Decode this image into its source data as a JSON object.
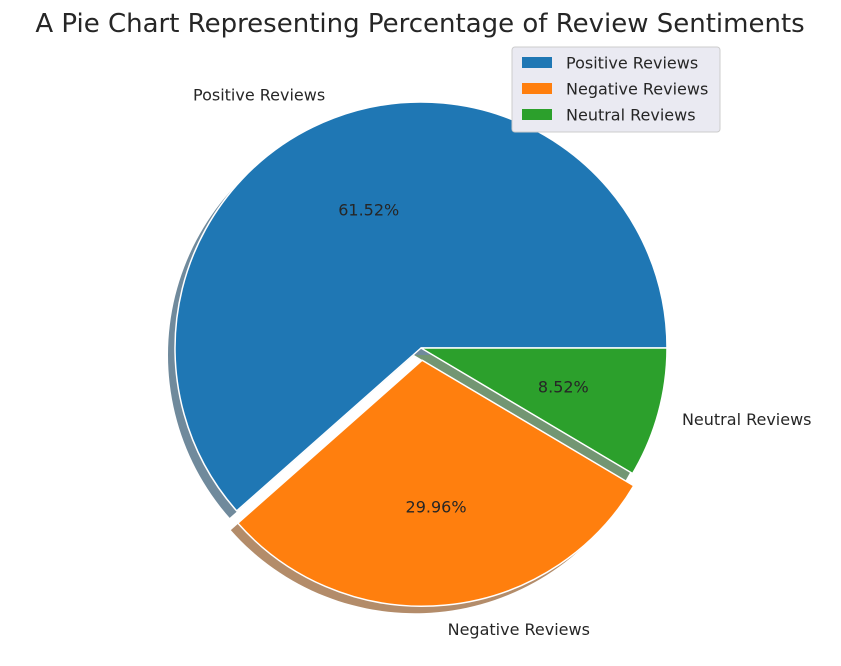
{
  "chart_data": {
    "type": "pie",
    "title": "A Pie Chart Representing Percentage of Review Sentiments",
    "slices": [
      {
        "label": "Positive Reviews",
        "value": 61.52,
        "pct_label": "61.52%",
        "color": "#1f77b4",
        "explode": 0
      },
      {
        "label": "Negative Reviews",
        "value": 29.96,
        "pct_label": "29.96%",
        "color": "#ff7f0e",
        "explode": 0.05
      },
      {
        "label": "Neutral Reviews",
        "value": 8.52,
        "pct_label": "8.52%",
        "color": "#2ca02c",
        "explode": 0
      }
    ],
    "start_angle_deg": 0,
    "direction": "counterclockwise",
    "shadow": true,
    "legend": {
      "placement": "top-right",
      "entries": [
        "Positive Reviews",
        "Negative Reviews",
        "Neutral Reviews"
      ]
    }
  }
}
